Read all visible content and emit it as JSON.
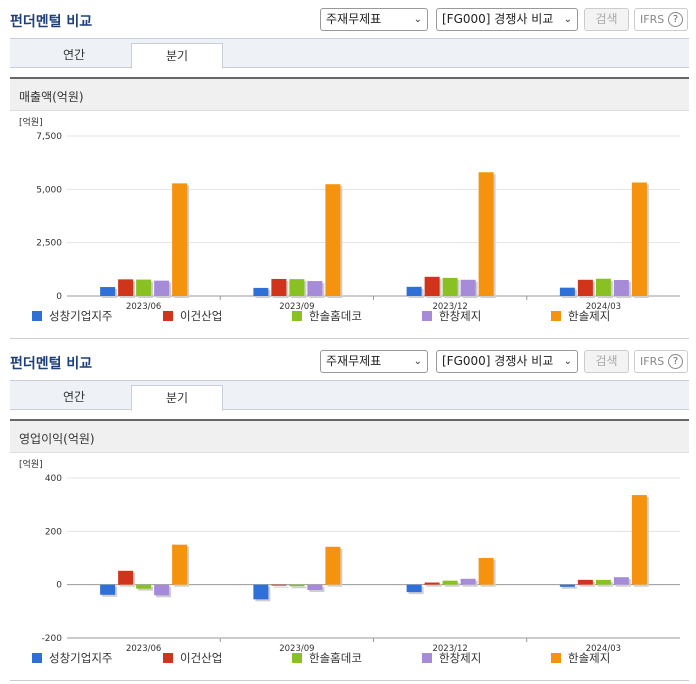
{
  "panels": [
    {
      "title": "펀더멘털 비교",
      "select_statement": "주재무제표",
      "select_compare": "[FG000] 경쟁사 비교",
      "search_label": "검색",
      "ifrs_label": "IFRS",
      "help_glyph": "?",
      "tabs": [
        "연간",
        "분기"
      ],
      "active_tab": "분기",
      "chart_title": "매출액(억원)",
      "unit_label": "[억원]"
    },
    {
      "title": "펀더멘털 비교",
      "select_statement": "주재무제표",
      "select_compare": "[FG000] 경쟁사 비교",
      "search_label": "검색",
      "ifrs_label": "IFRS",
      "help_glyph": "?",
      "tabs": [
        "연간",
        "분기"
      ],
      "active_tab": "분기",
      "chart_title": "영업이익(억원)",
      "unit_label": "[억원]"
    }
  ],
  "chart_data": [
    {
      "type": "bar",
      "title": "매출액(억원)",
      "ylabel": "[억원]",
      "categories": [
        "2023/06",
        "2023/09",
        "2023/12",
        "2024/03"
      ],
      "ylim": [
        0,
        7500
      ],
      "yticks": [
        0,
        2500,
        5000,
        7500
      ],
      "ytick_labels": [
        "0",
        "2,500",
        "5,000",
        "7,500"
      ],
      "grid": true,
      "legend": "bottom",
      "series": [
        {
          "name": "성창기업지주",
          "color": "#2e6fd8",
          "values": [
            420,
            380,
            430,
            390
          ]
        },
        {
          "name": "이건산업",
          "color": "#d0341a",
          "values": [
            780,
            800,
            900,
            760
          ]
        },
        {
          "name": "한솔홈데코",
          "color": "#88c121",
          "values": [
            770,
            790,
            850,
            810
          ]
        },
        {
          "name": "한창제지",
          "color": "#a58bd8",
          "values": [
            720,
            700,
            760,
            750
          ]
        },
        {
          "name": "한솔제지",
          "color": "#f5930f",
          "values": [
            5280,
            5240,
            5800,
            5320
          ]
        }
      ]
    },
    {
      "type": "bar",
      "title": "영업이익(억원)",
      "ylabel": "[억원]",
      "categories": [
        "2023/06",
        "2023/09",
        "2023/12",
        "2024/03"
      ],
      "ylim": [
        -200,
        400
      ],
      "yticks": [
        -200,
        0,
        200,
        400
      ],
      "ytick_labels": [
        "-200",
        "0",
        "200",
        "400"
      ],
      "grid": true,
      "legend": "bottom",
      "series": [
        {
          "name": "성창기업지주",
          "color": "#2e6fd8",
          "values": [
            -38,
            -55,
            -28,
            -8
          ]
        },
        {
          "name": "이건산업",
          "color": "#d0341a",
          "values": [
            52,
            0,
            8,
            18
          ]
        },
        {
          "name": "한솔홈데코",
          "color": "#88c121",
          "values": [
            -15,
            -6,
            15,
            18
          ]
        },
        {
          "name": "한창제지",
          "color": "#a58bd8",
          "values": [
            -40,
            -20,
            22,
            28
          ]
        },
        {
          "name": "한솔제지",
          "color": "#f5930f",
          "values": [
            150,
            142,
            100,
            336
          ]
        }
      ]
    }
  ]
}
